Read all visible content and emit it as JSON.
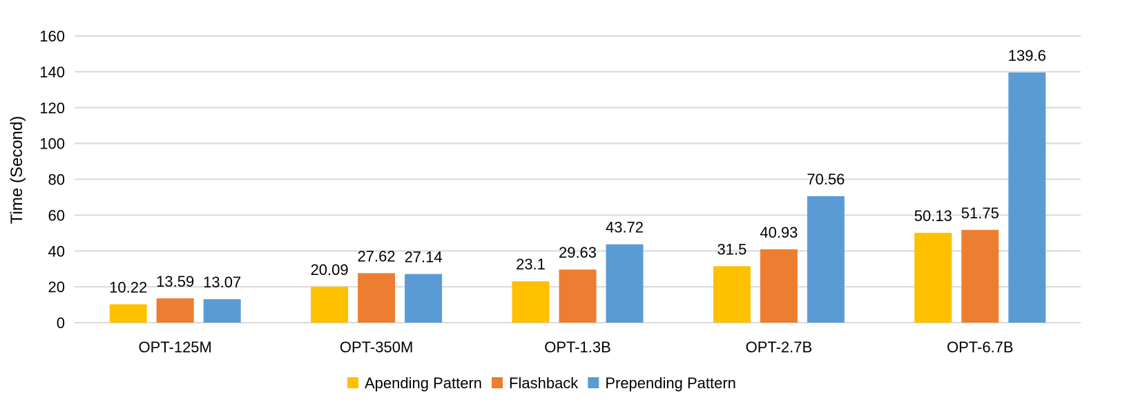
{
  "chart_data": {
    "type": "bar",
    "title": "",
    "xlabel": "",
    "ylabel": "Time (Second)",
    "ylim": [
      0,
      160
    ],
    "yticks": [
      0,
      20,
      40,
      60,
      80,
      100,
      120,
      140,
      160
    ],
    "grid": true,
    "legend_position": "bottom",
    "categories": [
      "OPT-125M",
      "OPT-350M",
      "OPT-1.3B",
      "OPT-2.7B",
      "OPT-6.7B"
    ],
    "series": [
      {
        "name": "Apending Pattern",
        "color": "#FFC000",
        "values": [
          10.22,
          20.09,
          23.1,
          31.5,
          50.13
        ],
        "labels": [
          "10.22",
          "20.09",
          "23.1",
          "31.5",
          "50.13"
        ]
      },
      {
        "name": "Flashback",
        "color": "#ED7D31",
        "values": [
          13.59,
          27.62,
          29.63,
          40.93,
          51.75
        ],
        "labels": [
          "13.59",
          "27.62",
          "29.63",
          "40.93",
          "51.75"
        ]
      },
      {
        "name": "Prepending Pattern",
        "color": "#5B9BD5",
        "values": [
          13.07,
          27.14,
          43.72,
          70.56,
          139.6
        ],
        "labels": [
          "13.07",
          "27.14",
          "43.72",
          "70.56",
          "139.6"
        ]
      }
    ]
  }
}
